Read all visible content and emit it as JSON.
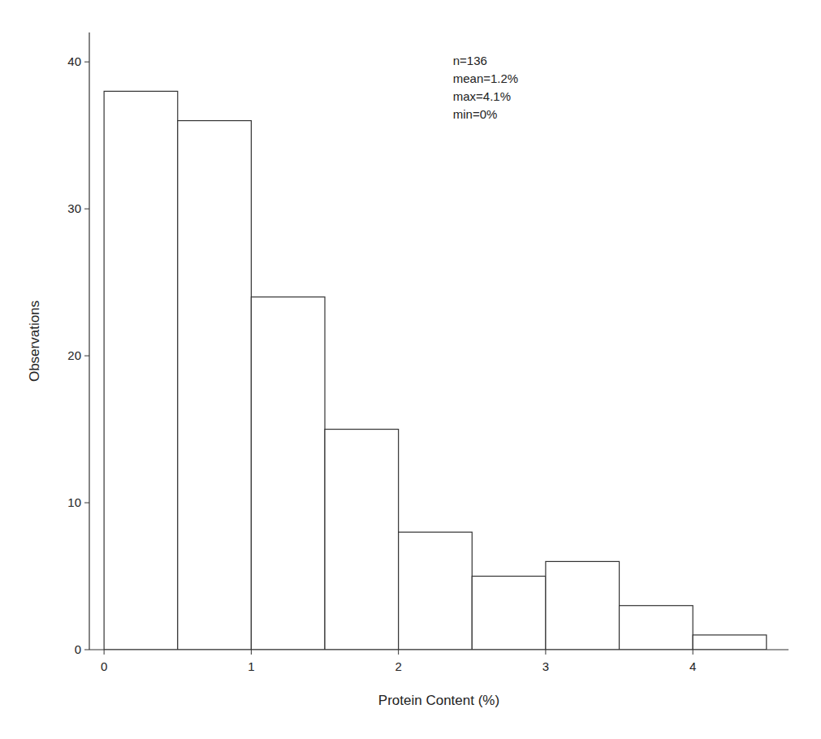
{
  "chart_data": {
    "type": "histogram",
    "xlabel": "Protein Content (%)",
    "ylabel": "Observations",
    "bins": [
      0.0,
      0.5,
      1.0,
      1.5,
      2.0,
      2.5,
      3.0,
      3.5,
      4.0,
      4.5
    ],
    "values": [
      38,
      36,
      24,
      15,
      8,
      5,
      6,
      3,
      1
    ],
    "color": "white",
    "xlim": [
      -0.1,
      4.65
    ],
    "ylim": [
      0,
      42
    ],
    "xticks": [
      0,
      1,
      2,
      3,
      4
    ],
    "yticks": [
      0,
      10,
      20,
      30,
      40
    ],
    "grid": false,
    "annotation": "n=136\nmean=1.2%\nmax=4.1%\nmin=0%"
  }
}
